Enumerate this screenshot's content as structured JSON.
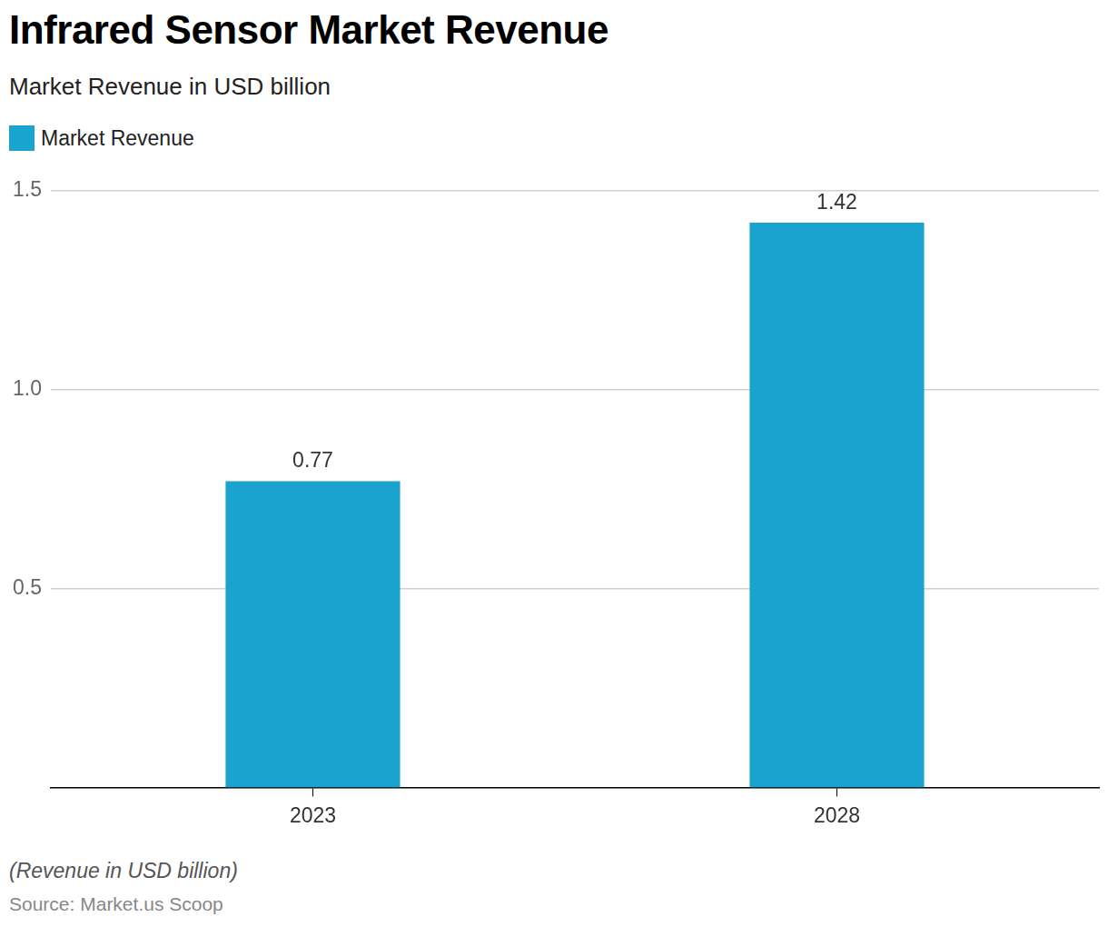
{
  "chart_data": {
    "type": "bar",
    "title": "Infrared Sensor Market Revenue",
    "subtitle": "Market Revenue in USD billion",
    "categories": [
      "2023",
      "2028"
    ],
    "series": [
      {
        "name": "Market Revenue",
        "color": "#1aa3cf",
        "values": [
          0.77,
          1.42
        ]
      }
    ],
    "ylim": [
      0,
      1.5
    ],
    "yticks": [
      0.5,
      {
        "value": 1,
        "label": "1.0"
      },
      1.5
    ],
    "grid": true,
    "legend": "top-left",
    "data_labels": true,
    "caption": "(Revenue in USD billion)",
    "source": "Source: Market.us Scoop"
  }
}
